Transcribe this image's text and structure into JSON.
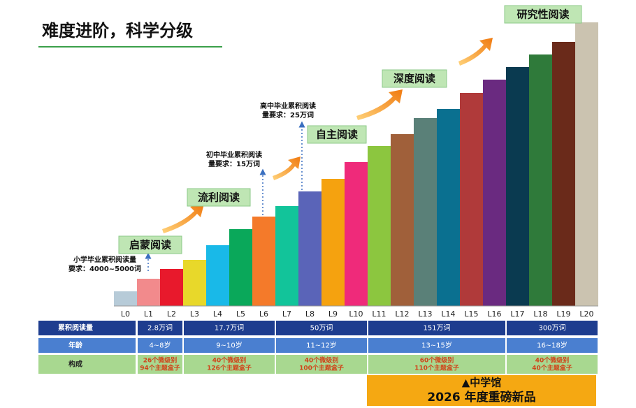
{
  "title": "难度进阶，科学分级",
  "chart_data": {
    "type": "bar",
    "categories": [
      "L0",
      "L1",
      "L2",
      "L3",
      "L4",
      "L5",
      "L6",
      "L7",
      "L8",
      "L9",
      "L10",
      "L11",
      "L12",
      "L13",
      "L14",
      "L15",
      "L16",
      "L17",
      "L18",
      "L19",
      "L20"
    ],
    "values": [
      21,
      39,
      53,
      66,
      87,
      110,
      128,
      143,
      164,
      182,
      206,
      229,
      246,
      269,
      282,
      305,
      324,
      342,
      360,
      378,
      406
    ],
    "colors": [
      "#b7cbd8",
      "#f28a8c",
      "#e8192c",
      "#e8d82a",
      "#19b9e8",
      "#0aa85a",
      "#f47a2a",
      "#12c49a",
      "#5a64b8",
      "#f5a20f",
      "#ef2a7a",
      "#8cc63f",
      "#a0603a",
      "#5a8078",
      "#0a7090",
      "#b03a3a",
      "#6a2a80",
      "#0a3a50",
      "#2f7a3a",
      "#6a2a1a",
      "#cbc3b0"
    ],
    "ylim": [
      0,
      406
    ]
  },
  "stages": [
    "启蒙阅读",
    "流利阅读",
    "自主阅读",
    "深度阅读",
    "研究性阅读"
  ],
  "annotations": [
    [
      "小学毕业累积阅读量",
      "要求：4000~5000词"
    ],
    [
      "初中毕业累积阅读",
      "量要求：15万词"
    ],
    [
      "高中毕业累积阅读",
      "量要求：25万词"
    ]
  ],
  "table": {
    "row_headers": [
      "累积阅读量",
      "年龄",
      "构成"
    ],
    "groups": [
      {
        "total": "2.8万词",
        "age": "4~8岁",
        "composition": [
          "26个微级别",
          "94个主题盒子"
        ]
      },
      {
        "total": "17.7万词",
        "age": "9~10岁",
        "composition": [
          "40个微级别",
          "126个主题盒子"
        ]
      },
      {
        "total": "50万词",
        "age": "11~12岁",
        "composition": [
          "40个微级别",
          "100个主题盒子"
        ]
      },
      {
        "total": "151万词",
        "age": "13~15岁",
        "composition": [
          "60个微级别",
          "110个主题盒子"
        ]
      },
      {
        "total": "300万词",
        "age": "16~18岁",
        "composition": [
          "40个微级别",
          "40个主题盒子"
        ]
      }
    ]
  },
  "banner": [
    "▲中学馆",
    "2026 年度重磅新品"
  ]
}
